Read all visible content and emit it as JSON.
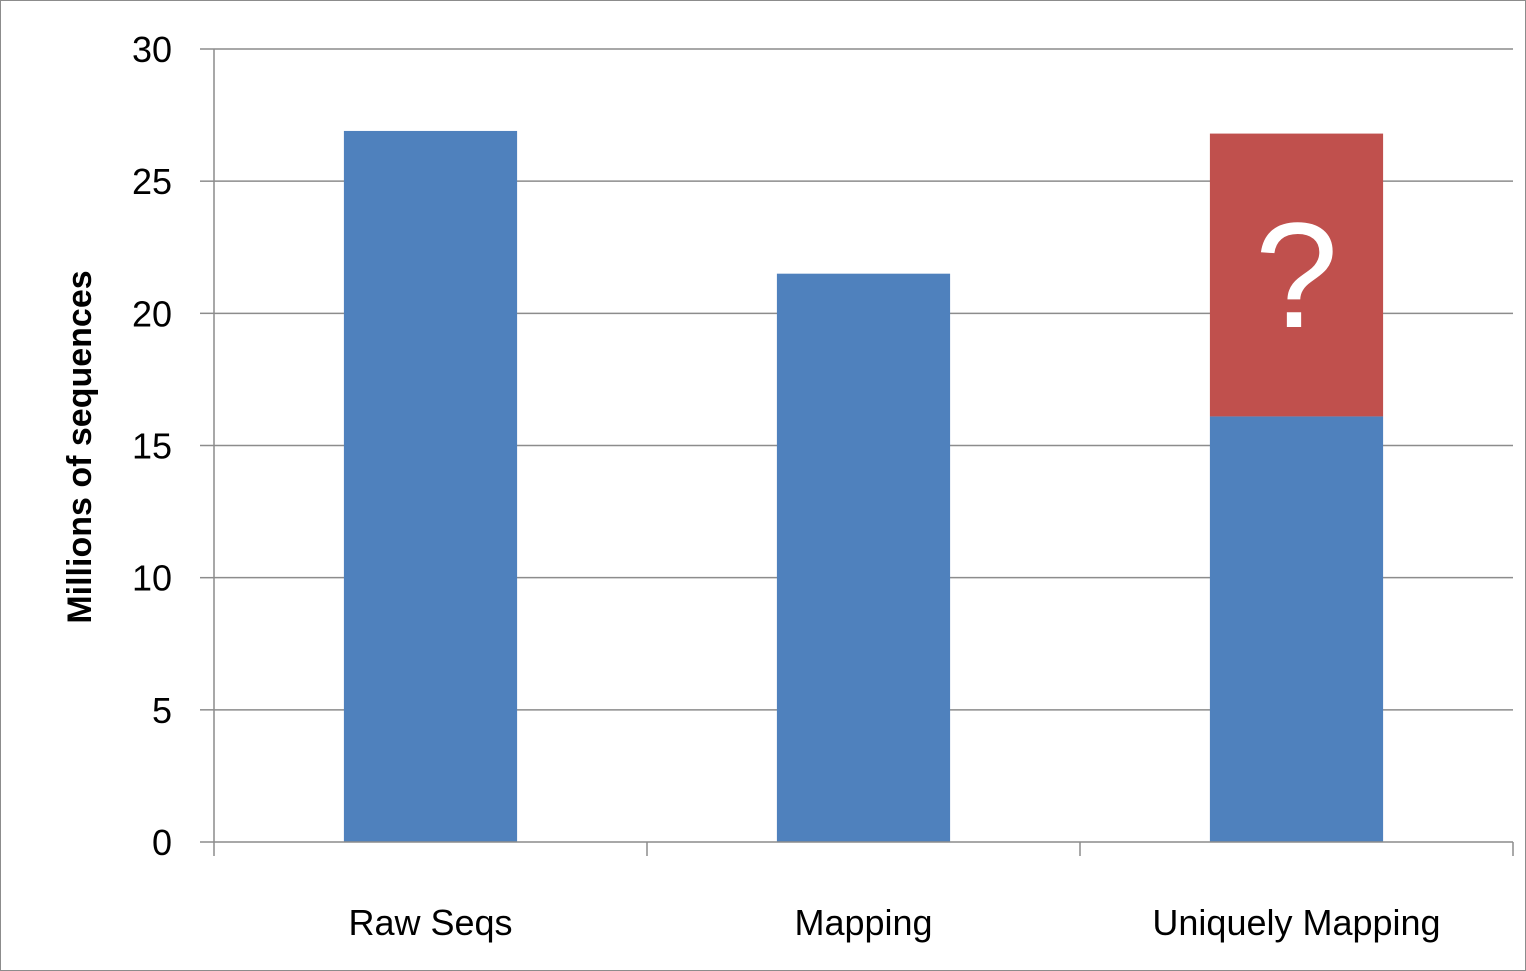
{
  "chart_data": {
    "type": "bar",
    "stacked": true,
    "title": "",
    "xlabel": "",
    "ylabel": "Millions of sequences",
    "ylim": [
      0,
      30
    ],
    "yticks": [
      0,
      5,
      10,
      15,
      20,
      25,
      30
    ],
    "grid": true,
    "legend": "none",
    "categories": [
      "Raw Seqs",
      "Mapping",
      "Uniquely Mapping"
    ],
    "series": [
      {
        "color": "#4f81bd",
        "values": [
          26.9,
          21.5,
          16.1
        ]
      },
      {
        "color": "#c0504d",
        "values": [
          0,
          0,
          10.7
        ],
        "label": "?"
      }
    ]
  }
}
